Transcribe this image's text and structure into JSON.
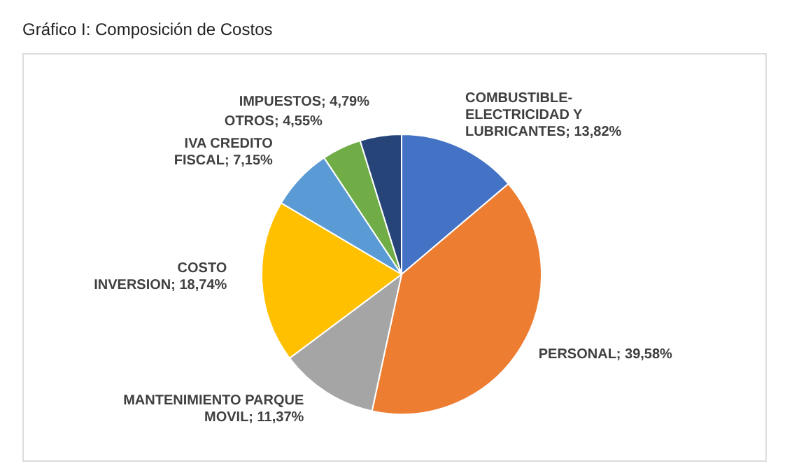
{
  "chart_data": {
    "type": "pie",
    "title": "Gráfico I: Composición de Costos",
    "categories": [
      "COMBUSTIBLE-ELECTRICIDAD Y LUBRICANTES",
      "PERSONAL",
      "MANTENIMIENTO PARQUE MOVIL",
      "COSTO INVERSION",
      "IVA CREDITO FISCAL",
      "OTROS",
      "IMPUESTOS"
    ],
    "values": [
      13.82,
      39.58,
      11.37,
      18.74,
      7.15,
      4.55,
      4.79
    ],
    "value_labels": [
      "13,82%",
      "39,58%",
      "11,37%",
      "18,74%",
      "7,15%",
      "4,55%",
      "4,79%"
    ],
    "colors": [
      "#4472c4",
      "#ed7d31",
      "#a5a5a5",
      "#ffc000",
      "#5b9bd5",
      "#70ad47",
      "#264478"
    ],
    "legend": false
  }
}
